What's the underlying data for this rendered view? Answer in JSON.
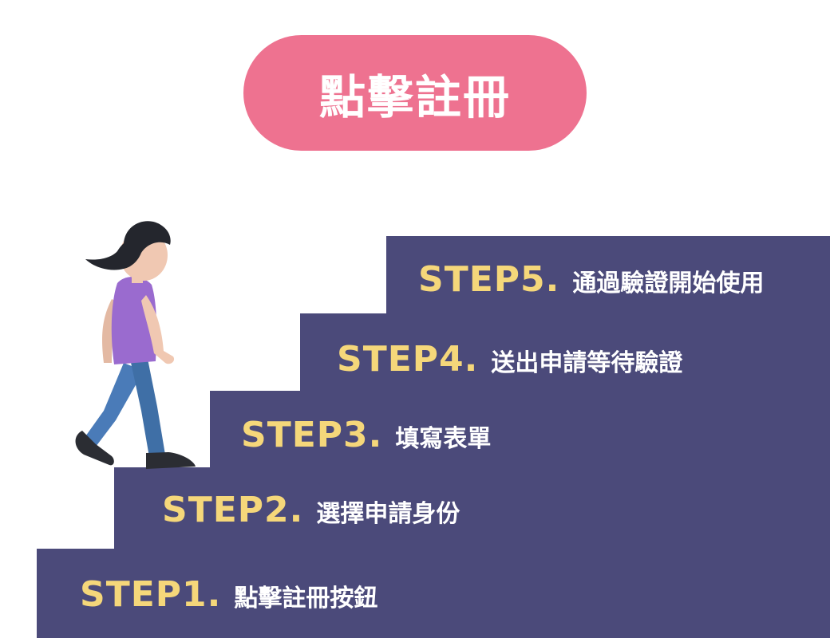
{
  "title": "點擊註冊",
  "colors": {
    "title_bg": "#ee7290",
    "stairs": "#4b4a7a",
    "step_number": "#f5d77a",
    "step_text": "#ffffff"
  },
  "steps": [
    {
      "number": "STEP1.",
      "text": "點擊註冊按鈕"
    },
    {
      "number": "STEP2.",
      "text": "選擇申請身份"
    },
    {
      "number": "STEP3.",
      "text": "填寫表單"
    },
    {
      "number": "STEP4.",
      "text": "送出申請等待驗證"
    },
    {
      "number": "STEP5.",
      "text": "通過驗證開始使用"
    }
  ]
}
